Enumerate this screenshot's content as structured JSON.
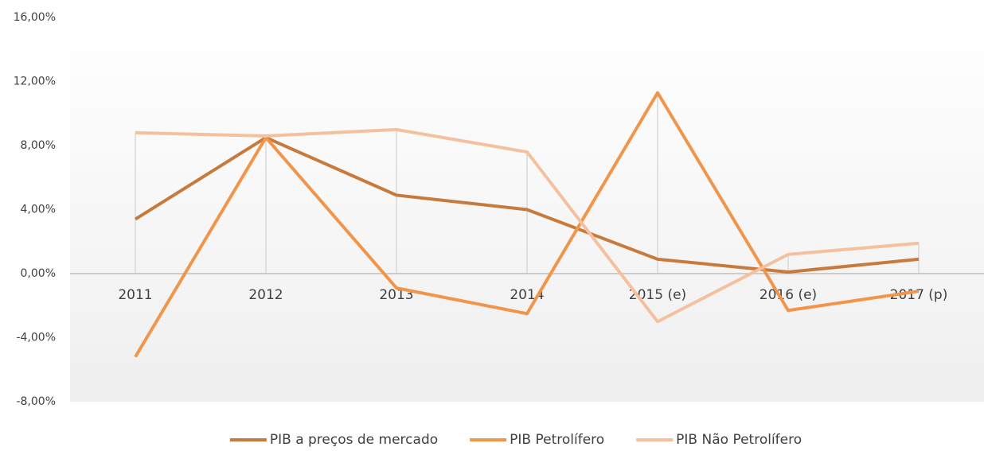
{
  "chart_data": {
    "type": "line",
    "categories": [
      "2011",
      "2012",
      "2013",
      "2014",
      "2015 (e)",
      "2016 (e)",
      "2017 (p)"
    ],
    "series": [
      {
        "name": "PIB a preços de mercado",
        "color": "#c87a3c",
        "values": [
          3.4,
          8.5,
          4.9,
          4.0,
          0.9,
          0.1,
          0.9
        ]
      },
      {
        "name": "PIB Petrolífero",
        "color": "#f0954a",
        "values": [
          -5.2,
          8.5,
          -0.9,
          -2.5,
          11.3,
          -2.3,
          -1.1
        ]
      },
      {
        "name": "PIB Não Petrolífero",
        "color": "#f5c0a0",
        "values": [
          8.8,
          8.6,
          9.0,
          7.6,
          -3.0,
          1.2,
          1.9
        ]
      }
    ],
    "ylim": [
      -8,
      16
    ],
    "yticks": [
      {
        "value": -8,
        "label": "-8,00%"
      },
      {
        "value": -4,
        "label": "-4,00%"
      },
      {
        "value": 0,
        "label": "0,00%"
      },
      {
        "value": 4,
        "label": "4,00%"
      },
      {
        "value": 8,
        "label": "8,00%"
      },
      {
        "value": 12,
        "label": "12,00%"
      },
      {
        "value": 16,
        "label": "16,00%"
      }
    ],
    "legend": "bottom"
  }
}
